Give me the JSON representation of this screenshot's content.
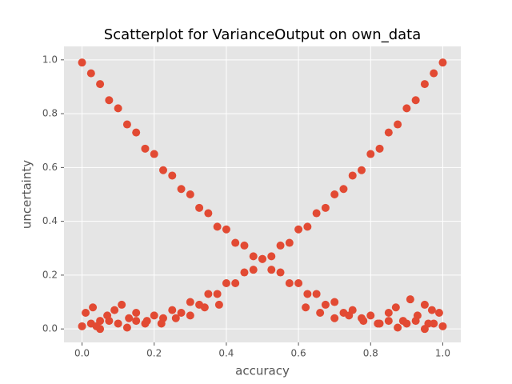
{
  "chart_data": {
    "type": "scatter",
    "title": "Scatterplot for VarianceOutput on own_data",
    "xlabel": "accuracy",
    "ylabel": "uncertainty",
    "color": "#E24A33",
    "grid": true,
    "xlim": [
      -0.05,
      1.05
    ],
    "ylim": [
      -0.05,
      1.05
    ],
    "xticks": [
      {
        "value": 0,
        "label": "0.0"
      },
      0.2,
      0.4,
      0.6,
      0.8,
      {
        "value": 1,
        "label": "1.0"
      }
    ],
    "yticks": [
      {
        "value": 0,
        "label": "0.0"
      },
      0.2,
      0.4,
      0.6,
      0.8,
      {
        "value": 1,
        "label": "1.0"
      }
    ],
    "x": [
      0,
      0.025,
      0.05,
      0.075,
      0.1,
      0.125,
      0.15,
      0.175,
      0.2,
      0.225,
      0.25,
      0.275,
      0.3,
      0.325,
      0.35,
      0.375,
      0.4,
      0.425,
      0.45,
      0.475,
      0.5,
      0.525,
      0.55,
      0.575,
      0.6,
      0.625,
      0.65,
      0.675,
      0.7,
      0.725,
      0.75,
      0.775,
      0.8,
      0.825,
      0.85,
      0.875,
      0.9,
      0.925,
      0.95,
      0.975,
      1,
      0,
      0.025,
      0.05,
      0.075,
      0.1,
      0.125,
      0.15,
      0.175,
      0.2,
      0.225,
      0.25,
      0.275,
      0.3,
      0.325,
      0.35,
      0.375,
      0.4,
      0.425,
      0.45,
      0.475,
      0.5,
      0.525,
      0.55,
      0.575,
      0.6,
      0.625,
      0.65,
      0.675,
      0.7,
      0.725,
      0.75,
      0.775,
      0.8,
      0.825,
      0.85,
      0.875,
      0.9,
      0.925,
      0.95,
      0.975,
      1,
      0.01,
      0.03,
      0.05,
      0.07,
      0.09,
      0.11,
      0.13,
      0.15,
      0.18,
      0.22,
      0.26,
      0.3,
      0.34,
      0.38,
      0.62,
      0.66,
      0.7,
      0.74,
      0.78,
      0.82,
      0.85,
      0.87,
      0.89,
      0.91,
      0.93,
      0.95,
      0.97,
      0.99,
      0.04,
      0.96
    ],
    "values": [
      0.01,
      0.02,
      0.0,
      0.03,
      0.02,
      0.005,
      0.03,
      0.02,
      0.05,
      0.04,
      0.07,
      0.06,
      0.1,
      0.09,
      0.13,
      0.13,
      0.17,
      0.17,
      0.21,
      0.22,
      0.26,
      0.27,
      0.31,
      0.32,
      0.37,
      0.38,
      0.43,
      0.45,
      0.5,
      0.52,
      0.57,
      0.59,
      0.65,
      0.67,
      0.73,
      0.76,
      0.82,
      0.85,
      0.91,
      0.95,
      0.99,
      0.99,
      0.95,
      0.91,
      0.85,
      0.82,
      0.76,
      0.73,
      0.67,
      0.65,
      0.59,
      0.57,
      0.52,
      0.5,
      0.45,
      0.43,
      0.38,
      0.37,
      0.32,
      0.31,
      0.27,
      0.26,
      0.22,
      0.21,
      0.17,
      0.17,
      0.13,
      0.13,
      0.09,
      0.1,
      0.06,
      0.07,
      0.04,
      0.05,
      0.02,
      0.03,
      0.005,
      0.02,
      0.03,
      0.0,
      0.02,
      0.01,
      0.06,
      0.08,
      0.03,
      0.05,
      0.07,
      0.09,
      0.04,
      0.06,
      0.03,
      0.02,
      0.04,
      0.05,
      0.08,
      0.09,
      0.08,
      0.06,
      0.04,
      0.05,
      0.03,
      0.02,
      0.06,
      0.08,
      0.03,
      0.11,
      0.05,
      0.09,
      0.07,
      0.06,
      0.01,
      0.02
    ]
  }
}
